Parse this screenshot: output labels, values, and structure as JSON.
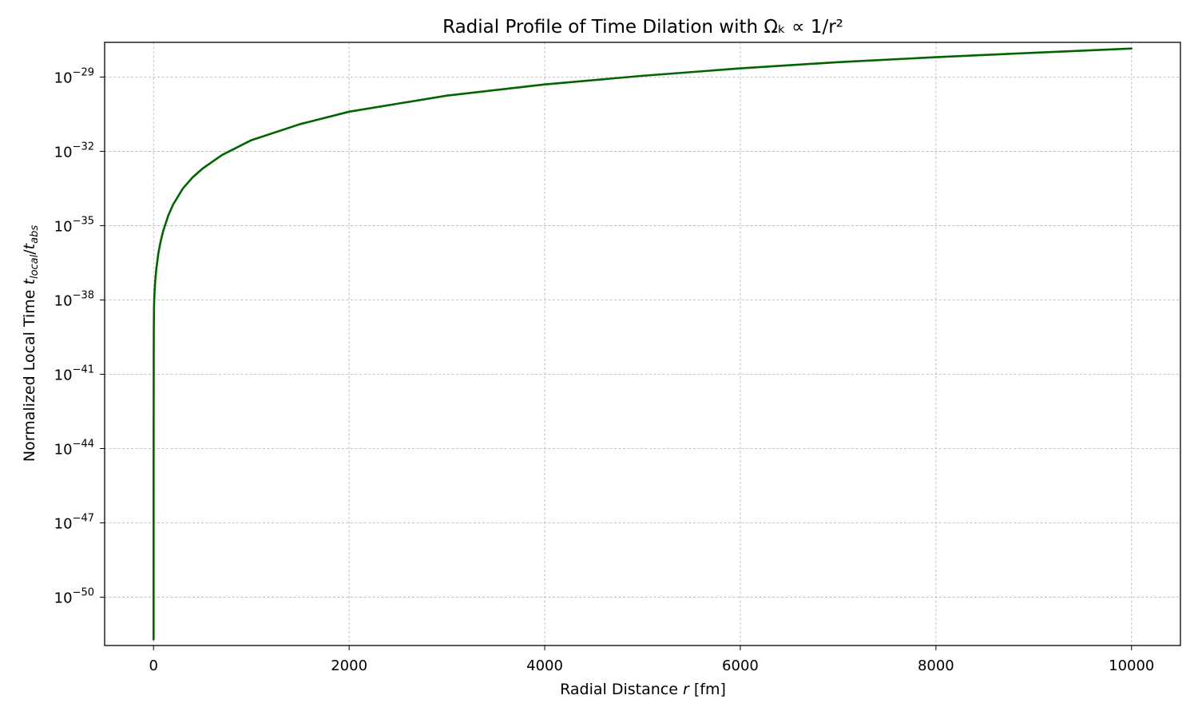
{
  "chart_data": {
    "type": "line",
    "title": "Radial Profile of Time Dilation with Ωₖ ∝ 1/r²",
    "xlabel": {
      "prefix": "Radial Distance ",
      "var": "r",
      "suffix": " [fm]"
    },
    "ylabel": {
      "prefix": "Normalized Local Time ",
      "t1": "t",
      "s1": "local",
      "slash": "/",
      "t2": "t",
      "s2": "abs"
    },
    "xlim": [
      -500,
      10500
    ],
    "ylim_log10": [
      -51.95,
      -27.6
    ],
    "xscale": "linear",
    "yscale": "log",
    "grid": true,
    "x_ticks": [
      0,
      2000,
      4000,
      6000,
      8000,
      10000
    ],
    "x_tick_labels": [
      "0",
      "2000",
      "4000",
      "6000",
      "8000",
      "10000"
    ],
    "y_ticks_log10": [
      -50,
      -47,
      -44,
      -41,
      -38,
      -35,
      -32,
      -29
    ],
    "y_tick_labels": [
      {
        "base": "10",
        "exp": "−50"
      },
      {
        "base": "10",
        "exp": "−47"
      },
      {
        "base": "10",
        "exp": "−44"
      },
      {
        "base": "10",
        "exp": "−41"
      },
      {
        "base": "10",
        "exp": "−38"
      },
      {
        "base": "10",
        "exp": "−35"
      },
      {
        "base": "10",
        "exp": "−32"
      },
      {
        "base": "10",
        "exp": "−29"
      }
    ],
    "series": [
      {
        "color": "#006400",
        "x": [
          0.5,
          1,
          2,
          3,
          5,
          8,
          10,
          15,
          20,
          30,
          50,
          75,
          100,
          150,
          200,
          300,
          400,
          500,
          700,
          1000,
          1500,
          2000,
          3000,
          4000,
          5000,
          6000,
          7000,
          8000,
          9000,
          10000
        ],
        "log10_y": [
          -51.7,
          -44.0,
          -40.3,
          -39.1,
          -38.3,
          -37.9,
          -37.75,
          -37.4,
          -37.1,
          -36.7,
          -36.1,
          -35.6,
          -35.2,
          -34.6,
          -34.15,
          -33.5,
          -33.05,
          -32.7,
          -32.15,
          -31.55,
          -30.9,
          -30.4,
          -29.75,
          -29.3,
          -28.95,
          -28.65,
          -28.4,
          -28.2,
          -28.02,
          -27.85
        ]
      }
    ]
  }
}
